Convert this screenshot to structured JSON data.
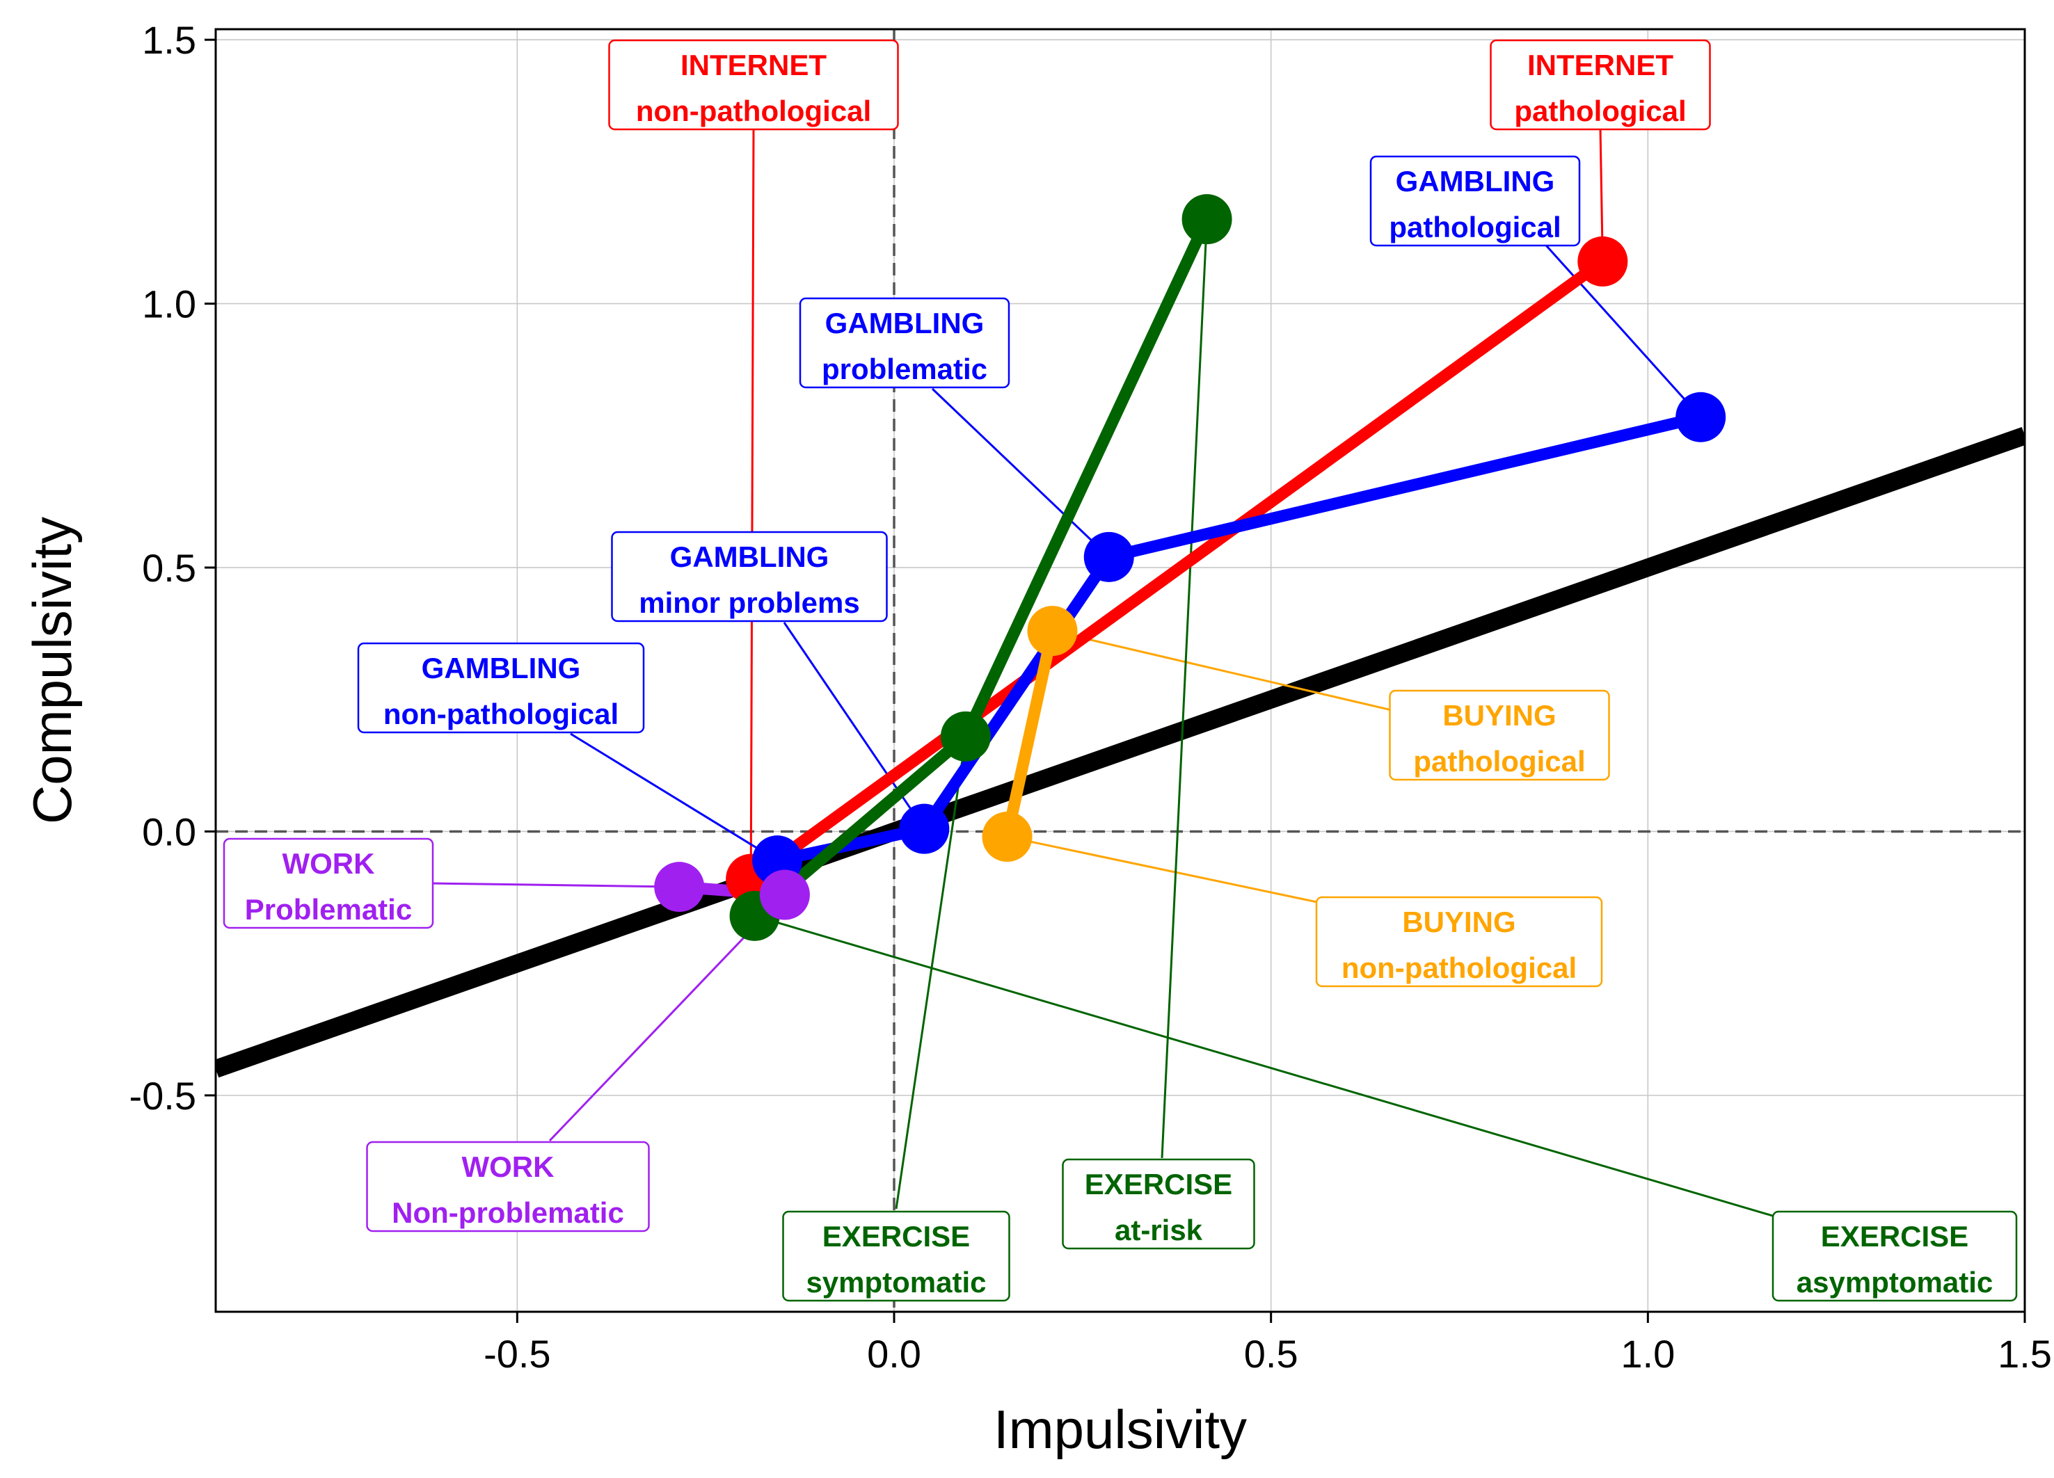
{
  "chart_data": {
    "type": "line",
    "title": "",
    "xlabel": "Impulsivity",
    "ylabel": "Compulsivity",
    "xlim": [
      -0.9,
      1.5
    ],
    "ylim": [
      -0.91,
      1.52
    ],
    "xticks": [
      -0.5,
      0.0,
      0.5,
      1.0,
      1.5
    ],
    "xtick_labels": [
      "-0.5",
      "0.0",
      "0.5",
      "1.0",
      "1.5"
    ],
    "yticks": [
      -0.5,
      0.0,
      0.5,
      1.0,
      1.5
    ],
    "ytick_labels": [
      "-0.5",
      "0.0",
      "0.5",
      "1.0",
      "1.5"
    ],
    "grid": true,
    "reference_lines": [
      {
        "orientation": "horizontal",
        "value": 0.0,
        "style": "dashed",
        "color": "#555555"
      },
      {
        "orientation": "vertical",
        "value": 0.0,
        "style": "dashed",
        "color": "#555555"
      }
    ],
    "diagonal_line": {
      "slope": 0.5,
      "intercept": 0.0,
      "color": "#000000"
    },
    "series": [
      {
        "color": "#ff0000",
        "points": [
          [
            -0.19,
            -0.09
          ],
          [
            0.94,
            1.08
          ]
        ]
      },
      {
        "color": "#0000ff",
        "points": [
          [
            -0.155,
            -0.055
          ],
          [
            0.04,
            0.005
          ],
          [
            0.285,
            0.52
          ],
          [
            1.07,
            0.785
          ]
        ]
      },
      {
        "color": "#006400",
        "points": [
          [
            -0.185,
            -0.16
          ],
          [
            0.095,
            0.18
          ],
          [
            0.415,
            1.16
          ]
        ]
      },
      {
        "color": "#ffa500",
        "points": [
          [
            0.15,
            -0.01
          ],
          [
            0.21,
            0.38
          ]
        ]
      },
      {
        "color": "#a020f0",
        "points": [
          [
            -0.285,
            -0.105
          ],
          [
            -0.145,
            -0.12
          ]
        ]
      }
    ],
    "annotations": [
      {
        "line1": "INTERNET",
        "line2": "non-pathological",
        "color": "#ff0000",
        "target": [
          -0.19,
          -0.09
        ]
      },
      {
        "line1": "INTERNET",
        "line2": "pathological",
        "color": "#ff0000",
        "target": [
          0.94,
          1.08
        ]
      },
      {
        "line1": "GAMBLING",
        "line2": "pathological",
        "color": "#0000ff",
        "target": [
          1.07,
          0.785
        ]
      },
      {
        "line1": "GAMBLING",
        "line2": "problematic",
        "color": "#0000ff",
        "target": [
          0.285,
          0.52
        ]
      },
      {
        "line1": "GAMBLING",
        "line2": "minor problems",
        "color": "#0000ff",
        "target": [
          0.04,
          0.005
        ]
      },
      {
        "line1": "GAMBLING",
        "line2": "non-pathological",
        "color": "#0000ff",
        "target": [
          -0.155,
          -0.055
        ]
      },
      {
        "line1": "BUYING",
        "line2": "pathological",
        "color": "#ffa500",
        "target": [
          0.21,
          0.38
        ]
      },
      {
        "line1": "BUYING",
        "line2": "non-pathological",
        "color": "#ffa500",
        "target": [
          0.15,
          -0.01
        ]
      },
      {
        "line1": "WORK",
        "line2": "Problematic",
        "color": "#a020f0",
        "target": [
          -0.285,
          -0.105
        ]
      },
      {
        "line1": "WORK",
        "line2": "Non-problematic",
        "color": "#a020f0",
        "target": [
          -0.145,
          -0.12
        ]
      },
      {
        "line1": "EXERCISE",
        "line2": "symptomatic",
        "color": "#006400",
        "target": [
          0.095,
          0.18
        ]
      },
      {
        "line1": "EXERCISE",
        "line2": "at-risk",
        "color": "#006400",
        "target": [
          0.415,
          1.16
        ]
      },
      {
        "line1": "EXERCISE",
        "line2": "asymptomatic",
        "color": "#006400",
        "target": [
          -0.185,
          -0.16
        ]
      }
    ]
  }
}
